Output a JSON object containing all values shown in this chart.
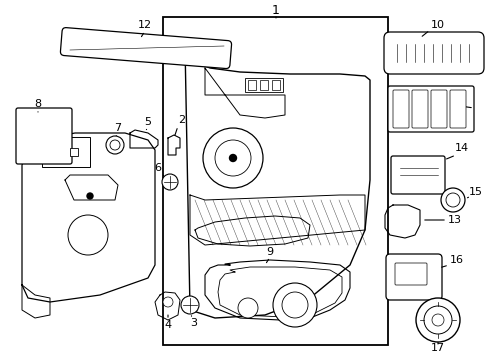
{
  "background_color": "#ffffff",
  "line_color": "#000000",
  "text_color": "#000000",
  "figsize": [
    4.89,
    3.6
  ],
  "dpi": 100
}
